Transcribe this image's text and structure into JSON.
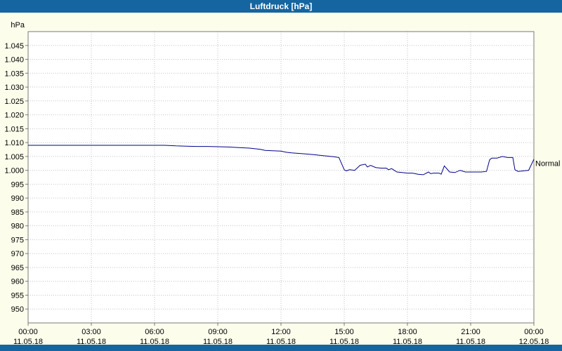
{
  "window": {
    "title": "Luftdruck [hPa]"
  },
  "colors": {
    "titlebar": "#1565a0",
    "titlebar_text": "#ffffff",
    "background": "#fdfdec",
    "plot_bg": "#ffffff",
    "grid": "#c2c2c2",
    "axis": "#7a7a7a",
    "line": "#00008c",
    "text": "#000000"
  },
  "chart_data": {
    "type": "line",
    "title": "Luftdruck [hPa]",
    "xlabel": "",
    "ylabel": "hPa",
    "ylim": [
      945,
      1050
    ],
    "xlim": [
      0,
      24
    ],
    "grid": true,
    "legend_position": "none",
    "yticks": {
      "values": [
        1045,
        1040,
        1035,
        1030,
        1025,
        1020,
        1015,
        1010,
        1005,
        1000,
        995,
        990,
        985,
        980,
        975,
        970,
        965,
        960,
        955,
        950
      ],
      "labels": [
        "1.045",
        "1.040",
        "1.035",
        "1.030",
        "1.025",
        "1.020",
        "1.015",
        "1.010",
        "1.005",
        "1.000",
        "995",
        "990",
        "985",
        "980",
        "975",
        "970",
        "965",
        "960",
        "955",
        "950"
      ]
    },
    "xticks": [
      {
        "hour": 0,
        "time": "00:00",
        "date": "11.05.18"
      },
      {
        "hour": 3,
        "time": "03:00",
        "date": "11.05.18"
      },
      {
        "hour": 6,
        "time": "06:00",
        "date": "11.05.18"
      },
      {
        "hour": 9,
        "time": "09:00",
        "date": "11.05.18"
      },
      {
        "hour": 12,
        "time": "12:00",
        "date": "11.05.18"
      },
      {
        "hour": 15,
        "time": "15:00",
        "date": "11.05.18"
      },
      {
        "hour": 18,
        "time": "18:00",
        "date": "11.05.18"
      },
      {
        "hour": 21,
        "time": "21:00",
        "date": "11.05.18"
      },
      {
        "hour": 24,
        "time": "00:00",
        "date": "12.05.18"
      }
    ],
    "annotation": {
      "label": "Normal",
      "value": 1002.5
    },
    "series": [
      {
        "name": "Luftdruck",
        "color": "#00008c",
        "x": [
          0,
          0.5,
          1,
          1.5,
          2,
          2.5,
          3,
          3.5,
          4,
          4.5,
          5,
          5.5,
          6,
          6.5,
          7,
          7.5,
          8,
          8.5,
          9,
          9.5,
          10,
          10.5,
          11,
          11.25,
          11.5,
          12,
          12.25,
          12.5,
          13,
          13.5,
          14,
          14.25,
          14.5,
          14.75,
          15,
          15.1,
          15.25,
          15.5,
          15.75,
          16,
          16.1,
          16.25,
          16.5,
          16.75,
          17,
          17.1,
          17.25,
          17.5,
          17.75,
          18,
          18.25,
          18.5,
          18.75,
          19,
          19.1,
          19.25,
          19.5,
          19.6,
          19.75,
          20,
          20.25,
          20.5,
          20.75,
          21,
          21.25,
          21.5,
          21.75,
          21.9,
          22,
          22.25,
          22.5,
          22.75,
          23,
          23.1,
          23.25,
          23.5,
          23.75,
          24
        ],
        "y": [
          1009,
          1009,
          1009,
          1009,
          1009,
          1009,
          1009,
          1009,
          1009,
          1009,
          1009,
          1009,
          1009,
          1009,
          1008.8,
          1008.7,
          1008.6,
          1008.6,
          1008.5,
          1008.4,
          1008.2,
          1008,
          1007.6,
          1007.2,
          1007.1,
          1006.9,
          1006.5,
          1006.3,
          1006,
          1005.7,
          1005.3,
          1005.1,
          1004.9,
          1004.6,
          1000.2,
          999.8,
          1000.2,
          1000,
          1001.8,
          1002.2,
          1001.2,
          1001.8,
          1001,
          1000.8,
          1000.8,
          1000.2,
          1000.6,
          999.4,
          999.2,
          999,
          999,
          998.6,
          998.4,
          999.4,
          998.8,
          999,
          999,
          998.6,
          1001.6,
          999.4,
          999.2,
          1000,
          999.4,
          999.4,
          999.4,
          999.4,
          999.6,
          1003.8,
          1004.4,
          1004.4,
          1005,
          1004.6,
          1004.6,
          1000.2,
          999.6,
          999.8,
          1000,
          1004
        ]
      }
    ]
  }
}
